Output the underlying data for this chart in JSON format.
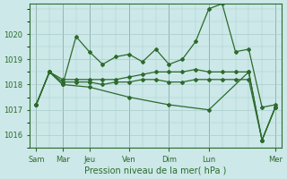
{
  "bg_color": "#cce8e8",
  "plot_bg_color": "#cce8e8",
  "line_color": "#2d6a2d",
  "grid_color": "#aacccc",
  "xlabel": "Pression niveau de la mer( hPa )",
  "ylim": [
    1015.5,
    1021.2
  ],
  "yticks": [
    1016,
    1017,
    1018,
    1019,
    1020
  ],
  "day_positions": [
    0,
    2,
    4,
    7,
    10,
    13,
    18
  ],
  "day_labels": [
    "Sam",
    "Mar",
    "Jeu",
    "Ven",
    "Dim",
    "Lun",
    "Mer"
  ],
  "lines": [
    {
      "comment": "volatile line - high peaks",
      "x": [
        0,
        1,
        2,
        3,
        4,
        5,
        6,
        7,
        8,
        9,
        10,
        11,
        12,
        13,
        14,
        15,
        16,
        17,
        18
      ],
      "y": [
        1017.2,
        1018.5,
        1018.0,
        1019.9,
        1019.3,
        1018.8,
        1019.1,
        1019.2,
        1018.9,
        1019.4,
        1018.8,
        1019.0,
        1019.7,
        1021.0,
        1021.2,
        1019.3,
        1019.4,
        1017.1,
        1017.2
      ]
    },
    {
      "comment": "nearly flat line slightly above 1018",
      "x": [
        0,
        1,
        2,
        3,
        4,
        5,
        6,
        7,
        8,
        9,
        10,
        11,
        12,
        13,
        14,
        15,
        16,
        17,
        18
      ],
      "y": [
        1017.2,
        1018.5,
        1018.2,
        1018.2,
        1018.2,
        1018.2,
        1018.2,
        1018.3,
        1018.4,
        1018.5,
        1018.5,
        1018.5,
        1018.6,
        1018.5,
        1018.5,
        1018.5,
        1018.5,
        1015.8,
        1017.1
      ]
    },
    {
      "comment": "nearly flat line at 1018",
      "x": [
        0,
        1,
        2,
        3,
        4,
        5,
        6,
        7,
        8,
        9,
        10,
        11,
        12,
        13,
        14,
        15,
        16,
        17,
        18
      ],
      "y": [
        1017.2,
        1018.5,
        1018.1,
        1018.1,
        1018.1,
        1018.0,
        1018.1,
        1018.1,
        1018.2,
        1018.2,
        1018.1,
        1018.1,
        1018.2,
        1018.2,
        1018.2,
        1018.2,
        1018.2,
        1015.8,
        1017.1
      ]
    },
    {
      "comment": "downward sloping line",
      "x": [
        0,
        1,
        2,
        4,
        7,
        10,
        13,
        16,
        17,
        18
      ],
      "y": [
        1017.2,
        1018.5,
        1018.0,
        1017.9,
        1017.5,
        1017.2,
        1017.0,
        1018.5,
        1015.8,
        1017.1
      ]
    }
  ]
}
